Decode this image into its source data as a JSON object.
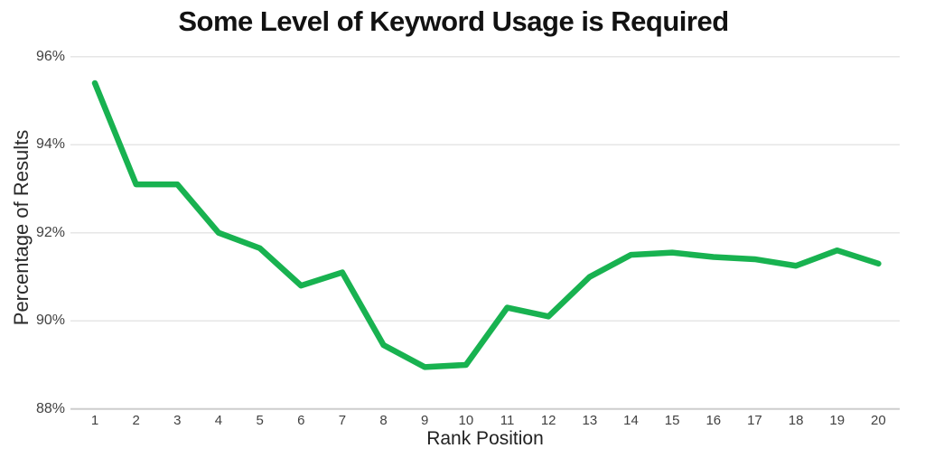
{
  "chart_data": {
    "type": "line",
    "title": "Some Level of Keyword Usage is Required",
    "xlabel": "Rank Position",
    "ylabel": "Percentage of Results",
    "categories": [
      1,
      2,
      3,
      4,
      5,
      6,
      7,
      8,
      9,
      10,
      11,
      12,
      13,
      14,
      15,
      16,
      17,
      18,
      19,
      20
    ],
    "series": [
      {
        "name": "Percentage of Results",
        "values": [
          95.4,
          93.1,
          93.1,
          92.0,
          91.65,
          90.8,
          91.1,
          89.45,
          88.95,
          89.0,
          90.3,
          90.1,
          91.0,
          91.5,
          91.55,
          91.45,
          91.4,
          91.25,
          91.6,
          91.3
        ]
      }
    ],
    "ylim": [
      88,
      96
    ],
    "yticks": [
      96,
      94,
      92,
      90,
      88
    ],
    "ytick_labels": [
      "96%",
      "94%",
      "92%",
      "90%",
      "88%"
    ],
    "grid": true,
    "legend": false,
    "colors": {
      "line": "#18b250",
      "grid": "#e6e6e6",
      "axis_line": "#cdcdcd",
      "tick_text": "#414141",
      "title_text": "#121212"
    }
  }
}
